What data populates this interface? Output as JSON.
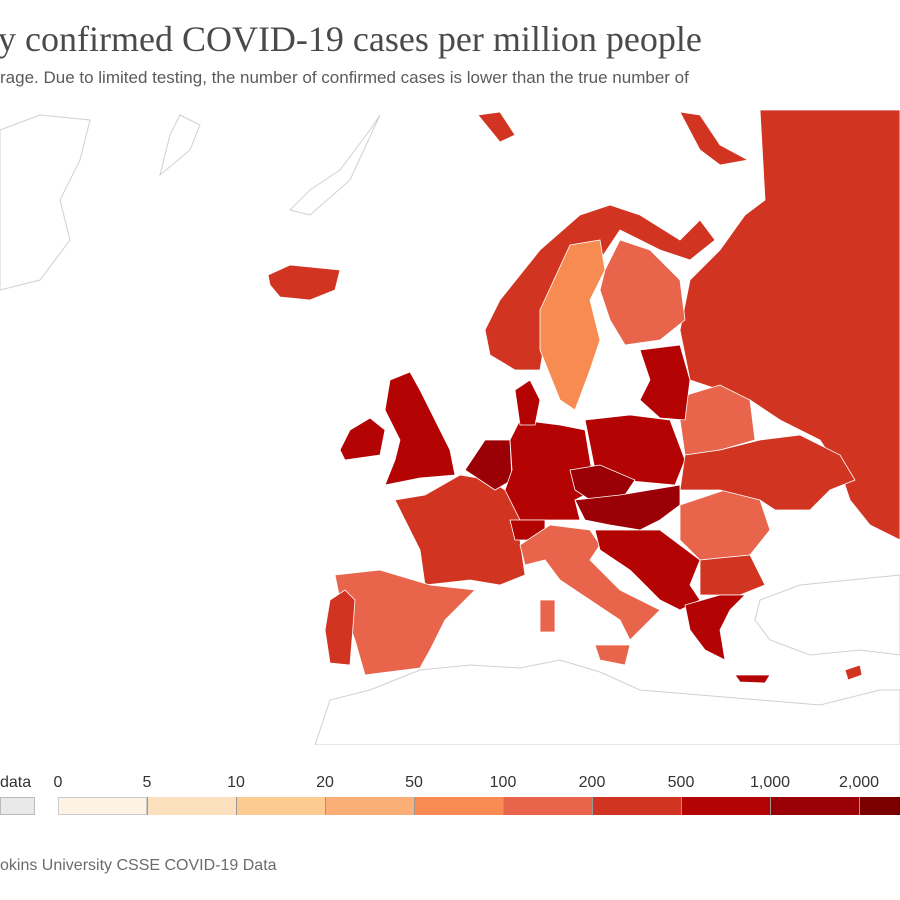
{
  "header": {
    "title": "y confirmed COVID-19 cases per million people",
    "subtitle": "rage. Due to limited testing, the number of confirmed cases is lower than the true number of"
  },
  "legend": {
    "no_data_label": "data",
    "no_data_color": "#e9e9e9",
    "thresholds": [
      "0",
      "5",
      "10",
      "20",
      "50",
      "100",
      "200",
      "500",
      "1,000",
      "2,000"
    ],
    "colors": [
      "#fdf3e4",
      "#fde0bd",
      "#fdcb91",
      "#fcae77",
      "#f88b51",
      "#e8644a",
      "#d13522",
      "#b40303",
      "#9a0006",
      "#7a0000"
    ]
  },
  "map_values": {
    "russia": 6,
    "norway": 6,
    "sweden": 4,
    "finland": 5,
    "iceland": 6,
    "uk": 7,
    "ireland": 7,
    "france": 6,
    "spain": 5,
    "portugal": 6,
    "benelux": 8,
    "germany": 7,
    "denmark": 7,
    "poland": 7,
    "czechia": 8,
    "austria-hungary": 8,
    "switzerland": 7,
    "italy": 5,
    "sardinia": 5,
    "sicily": 5,
    "balkans": 7,
    "romania": 5,
    "bulgaria": 6,
    "greece": 7,
    "belarus": 5,
    "ukraine": 6,
    "baltics": 7,
    "crete": 7,
    "cyprus": 6,
    "svalbard": 6,
    "novaya-zemlya": 6
  },
  "footer": {
    "source": "okins University CSSE COVID-19 Data"
  }
}
